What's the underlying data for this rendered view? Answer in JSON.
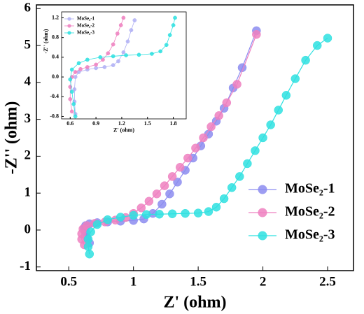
{
  "chart_data": [
    {
      "type": "scatter",
      "xlabel": "Z' (ohm)",
      "ylabel": "-Z'' (ohm)",
      "xlim": [
        0.25,
        2.7
      ],
      "ylim": [
        -1.1,
        6.1
      ],
      "xticks": [
        0.5,
        1.0,
        1.5,
        2.0,
        2.5
      ],
      "yticks": [
        -1,
        0,
        1,
        2,
        3,
        4,
        5,
        6
      ],
      "legend": "lower right",
      "series": [
        {
          "name": "MoSe₂-1",
          "color": "#8c8cf0",
          "x": [
            0.66,
            0.64,
            0.63,
            0.62,
            0.63,
            0.66,
            0.72,
            0.8,
            0.9,
            1.0,
            1.08,
            1.15,
            1.22,
            1.28,
            1.34,
            1.4,
            1.46,
            1.52,
            1.58,
            1.64,
            1.7,
            1.77,
            1.84,
            1.95
          ],
          "values": [
            -0.35,
            -0.2,
            -0.05,
            0.05,
            0.12,
            0.17,
            0.2,
            0.22,
            0.24,
            0.26,
            0.3,
            0.45,
            0.7,
            0.98,
            1.3,
            1.62,
            1.95,
            2.28,
            2.6,
            2.95,
            3.3,
            3.85,
            4.4,
            5.4
          ]
        },
        {
          "name": "MoSe₂-2",
          "color": "#ee80c0",
          "x": [
            0.62,
            0.6,
            0.6,
            0.61,
            0.64,
            0.7,
            0.78,
            0.86,
            0.94,
            1.0,
            1.06,
            1.12,
            1.18,
            1.24,
            1.3,
            1.36,
            1.42,
            1.48,
            1.54,
            1.6,
            1.66,
            1.72,
            1.8,
            1.95
          ],
          "values": [
            -0.4,
            -0.25,
            -0.1,
            0.03,
            0.12,
            0.18,
            0.22,
            0.27,
            0.34,
            0.45,
            0.6,
            0.78,
            0.98,
            1.2,
            1.45,
            1.7,
            1.95,
            2.22,
            2.5,
            2.8,
            3.1,
            3.45,
            3.95,
            5.3
          ]
        },
        {
          "name": "MoSe₂-3",
          "color": "#2ee0e0",
          "x": [
            0.66,
            0.65,
            0.65,
            0.67,
            0.72,
            0.8,
            0.9,
            1.0,
            1.1,
            1.2,
            1.3,
            1.4,
            1.5,
            1.58,
            1.64,
            1.7,
            1.76,
            1.82,
            1.88,
            1.94,
            2.0,
            2.06,
            2.12,
            2.18,
            2.25,
            2.33,
            2.42,
            2.5
          ],
          "values": [
            -0.65,
            -0.45,
            -0.25,
            -0.05,
            0.15,
            0.28,
            0.35,
            0.4,
            0.42,
            0.43,
            0.44,
            0.45,
            0.46,
            0.5,
            0.62,
            0.85,
            1.15,
            1.45,
            1.8,
            2.15,
            2.5,
            2.85,
            3.25,
            3.65,
            4.1,
            4.6,
            5.0,
            5.2
          ]
        }
      ]
    },
    {
      "type": "scatter",
      "xlabel": "Z' (ohm)",
      "ylabel": "-Z'' (ohm)",
      "xlim": [
        0.5,
        1.95
      ],
      "ylim": [
        -0.85,
        1.32
      ],
      "xticks": [
        0.6,
        0.9,
        1.2,
        1.5,
        1.8
      ],
      "yticks": [
        -0.8,
        -0.4,
        {
          "value": 0,
          "label": "0.0"
        },
        0.4,
        0.8,
        1.2
      ],
      "legend": "upper left",
      "series": [
        {
          "name": "MoSe₂-1",
          "color": "#b0b0f4",
          "x": [
            0.66,
            0.65,
            0.65,
            0.66,
            0.7,
            0.8,
            0.9,
            1.0,
            1.1,
            1.16,
            1.22,
            1.27,
            1.31,
            1.35
          ],
          "values": [
            -0.75,
            -0.5,
            -0.25,
            0.0,
            0.1,
            0.15,
            0.18,
            0.2,
            0.24,
            0.32,
            0.5,
            0.72,
            0.95,
            1.15
          ]
        },
        {
          "name": "MoSe₂-2",
          "color": "#ee80c0",
          "x": [
            0.62,
            0.6,
            0.6,
            0.62,
            0.66,
            0.72,
            0.8,
            0.9,
            0.98,
            1.04,
            1.1,
            1.15,
            1.19,
            1.22
          ],
          "values": [
            -0.7,
            -0.45,
            -0.2,
            0.0,
            0.1,
            0.16,
            0.2,
            0.25,
            0.35,
            0.48,
            0.66,
            0.88,
            1.05,
            1.2
          ]
        },
        {
          "name": "MoSe₂-3",
          "color": "#2ee0e0",
          "x": [
            0.66,
            0.64,
            0.62,
            0.6,
            0.62,
            0.7,
            0.8,
            0.95,
            1.1,
            1.25,
            1.4,
            1.55,
            1.65,
            1.72,
            1.76,
            1.8,
            1.82
          ],
          "values": [
            -0.8,
            -0.55,
            -0.3,
            -0.05,
            0.15,
            0.28,
            0.35,
            0.4,
            0.42,
            0.44,
            0.45,
            0.47,
            0.52,
            0.65,
            0.85,
            1.05,
            1.2
          ]
        }
      ]
    }
  ]
}
